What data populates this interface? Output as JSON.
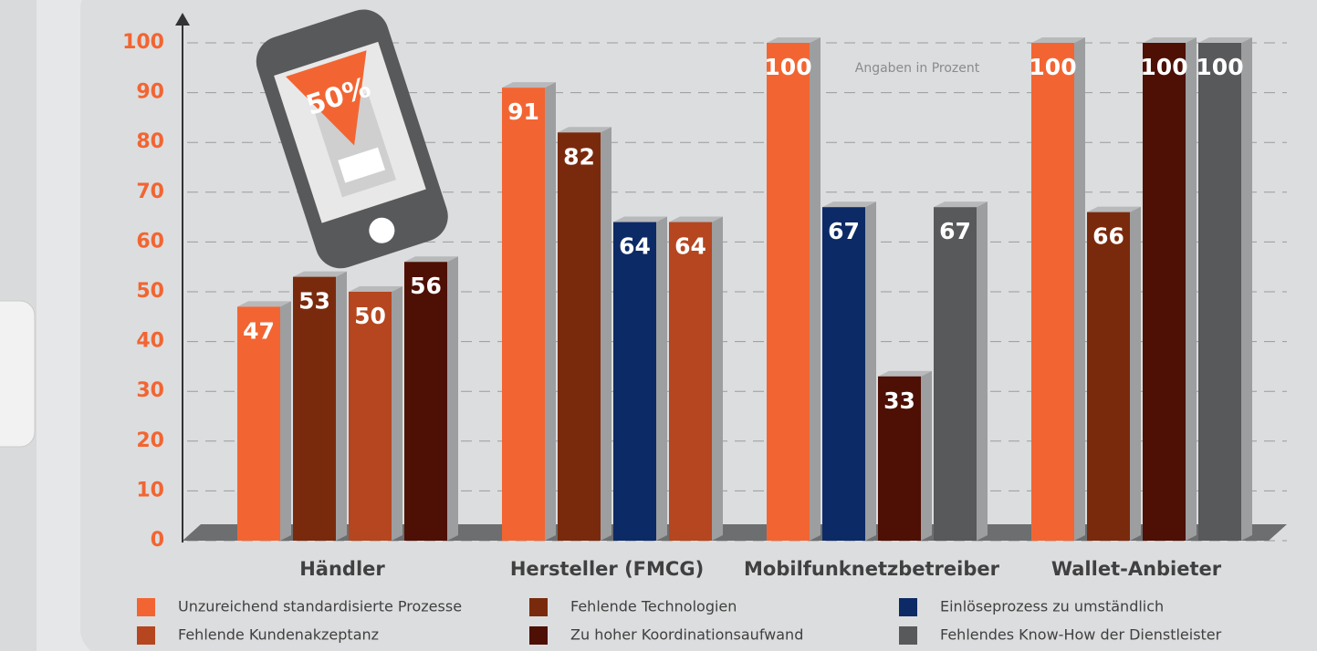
{
  "chart_data": {
    "type": "bar",
    "annotation": "Angaben in Prozent",
    "illustration_text": "50%",
    "categories": [
      "Händler",
      "Hersteller (FMCG)",
      "Mobilfunknetzbetreiber",
      "Wallet-Anbieter"
    ],
    "series": [
      {
        "name": "Unzureichend standardisierte Prozesse",
        "color": "#f26532",
        "values": [
          47,
          91,
          100,
          100
        ]
      },
      {
        "name": "Fehlende Technologien",
        "color": "#7a2a0c",
        "values": [
          53,
          82,
          null,
          66
        ]
      },
      {
        "name": "Einlöseprozess zu umständlich",
        "color": "#0c2a66",
        "values": [
          null,
          64,
          67,
          null
        ]
      },
      {
        "name": "Fehlende Kundenakzeptanz",
        "color": "#b5461f",
        "values": [
          50,
          64,
          null,
          null
        ]
      },
      {
        "name": "Zu hoher Koordinationsaufwand",
        "color": "#4e0f04",
        "values": [
          56,
          null,
          33,
          100
        ]
      },
      {
        "name": "Fehlendes Know-How der Dienstleister",
        "color": "#58595b",
        "values": [
          null,
          null,
          67,
          100
        ]
      }
    ],
    "ylim": [
      0,
      100
    ],
    "yticks": [
      0,
      10,
      20,
      30,
      40,
      50,
      60,
      70,
      80,
      90,
      100
    ],
    "grid": true
  }
}
